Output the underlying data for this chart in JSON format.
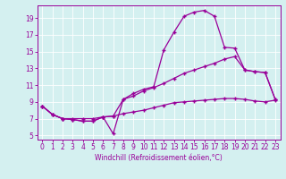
{
  "xlabel": "Windchill (Refroidissement éolien,°C)",
  "bg_color": "#d4f0f0",
  "line_color": "#990099",
  "xlim": [
    -0.5,
    23.5
  ],
  "ylim": [
    4.5,
    20.5
  ],
  "yticks": [
    5,
    7,
    9,
    11,
    13,
    15,
    17,
    19
  ],
  "xticks": [
    0,
    1,
    2,
    3,
    4,
    5,
    6,
    7,
    8,
    9,
    10,
    11,
    12,
    13,
    14,
    15,
    16,
    17,
    18,
    19,
    20,
    21,
    22,
    23
  ],
  "line1_x": [
    0,
    1,
    2,
    3,
    4,
    5,
    6,
    7,
    8,
    9,
    10,
    11,
    12,
    13,
    14,
    15,
    16,
    17,
    18,
    19,
    20,
    21,
    22,
    23
  ],
  "line1_y": [
    8.5,
    7.5,
    7.0,
    6.9,
    6.7,
    6.7,
    7.2,
    5.2,
    9.3,
    10.0,
    10.5,
    10.8,
    15.2,
    17.3,
    19.2,
    19.7,
    19.9,
    19.2,
    15.5,
    15.4,
    12.8,
    12.6,
    12.5,
    9.3
  ],
  "line2_x": [
    0,
    1,
    2,
    3,
    4,
    5,
    6,
    7,
    8,
    9,
    10,
    11,
    12,
    13,
    14,
    15,
    16,
    17,
    18,
    19,
    20,
    21,
    22,
    23
  ],
  "line2_y": [
    8.5,
    7.5,
    7.0,
    6.9,
    6.7,
    6.7,
    7.2,
    7.3,
    9.3,
    9.7,
    10.3,
    10.7,
    11.2,
    11.8,
    12.4,
    12.8,
    13.2,
    13.6,
    14.1,
    14.4,
    12.8,
    12.6,
    12.5,
    9.3
  ],
  "line3_x": [
    0,
    1,
    2,
    3,
    4,
    5,
    6,
    7,
    8,
    9,
    10,
    11,
    12,
    13,
    14,
    15,
    16,
    17,
    18,
    19,
    20,
    21,
    22,
    23
  ],
  "line3_y": [
    8.5,
    7.5,
    7.0,
    7.0,
    7.0,
    7.0,
    7.2,
    7.3,
    7.6,
    7.8,
    8.0,
    8.3,
    8.6,
    8.9,
    9.0,
    9.1,
    9.2,
    9.3,
    9.4,
    9.4,
    9.3,
    9.1,
    9.0,
    9.2
  ],
  "tick_fontsize": 5.5,
  "xlabel_fontsize": 5.5
}
